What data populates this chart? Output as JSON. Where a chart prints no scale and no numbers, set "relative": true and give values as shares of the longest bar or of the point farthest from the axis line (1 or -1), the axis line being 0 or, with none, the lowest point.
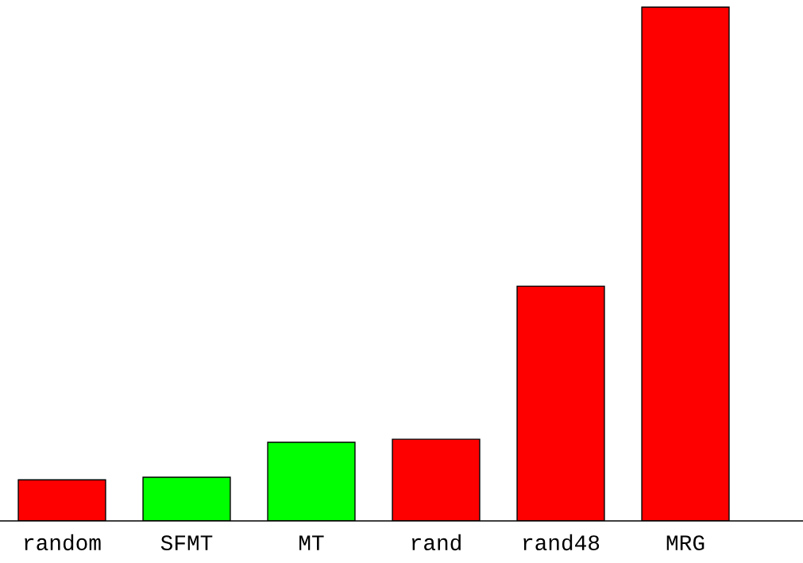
{
  "chart_data": {
    "type": "bar",
    "relative": true,
    "categories": [
      "random",
      "SFMT",
      "MT",
      "rand",
      "rand48",
      "MRG"
    ],
    "values": [
      0.08,
      0.085,
      0.153,
      0.159,
      0.457,
      1
    ],
    "colors": [
      "#ff0000",
      "#00ff00",
      "#00ff00",
      "#ff0000",
      "#ff0000",
      "#ff0000"
    ],
    "grid": false,
    "legend": false
  }
}
